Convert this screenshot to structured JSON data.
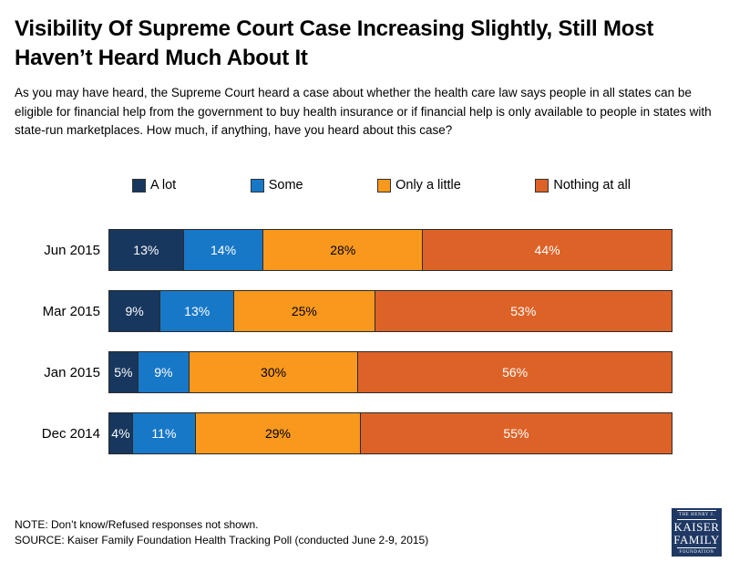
{
  "title": "Visibility Of Supreme Court Case Increasing Slightly, Still Most Haven’t Heard Much About It",
  "question": "As you may have heard, the Supreme Court heard a case about whether the health care law says people in all states can be eligible for financial help from the government to buy health insurance or if financial help is only available to people in states with state-run marketplaces. How much, if anything, have you heard about this case?",
  "chart_data": {
    "type": "bar",
    "orientation": "horizontal-stacked",
    "categories": [
      "Jun 2015",
      "Mar 2015",
      "Jan 2015",
      "Dec 2014"
    ],
    "series": [
      {
        "name": "A lot",
        "color": "#17375E",
        "text_color": "#FFFFFF",
        "values": [
          13,
          9,
          5,
          4
        ]
      },
      {
        "name": "Some",
        "color": "#1878C8",
        "text_color": "#FFFFFF",
        "values": [
          14,
          13,
          9,
          11
        ]
      },
      {
        "name": "Only a little",
        "color": "#F8981D",
        "text_color": "#000000",
        "values": [
          28,
          25,
          30,
          29
        ]
      },
      {
        "name": "Nothing at all",
        "color": "#DD6227",
        "text_color": "#FFFFFF",
        "values": [
          44,
          53,
          56,
          55
        ]
      }
    ],
    "value_suffix": "%",
    "xlim": [
      0,
      100
    ],
    "legend_position": "top",
    "grid": false
  },
  "footer": {
    "note": "NOTE: Don’t know/Refused responses not shown.",
    "source": "SOURCE: Kaiser Family Foundation Health Tracking Poll (conducted June 2-9, 2015)"
  },
  "logo": {
    "line1": "THE HENRY J.",
    "line2": "KAISER",
    "line3": "FAMILY",
    "line4": "FOUNDATION",
    "bg_color": "#1F3864"
  }
}
